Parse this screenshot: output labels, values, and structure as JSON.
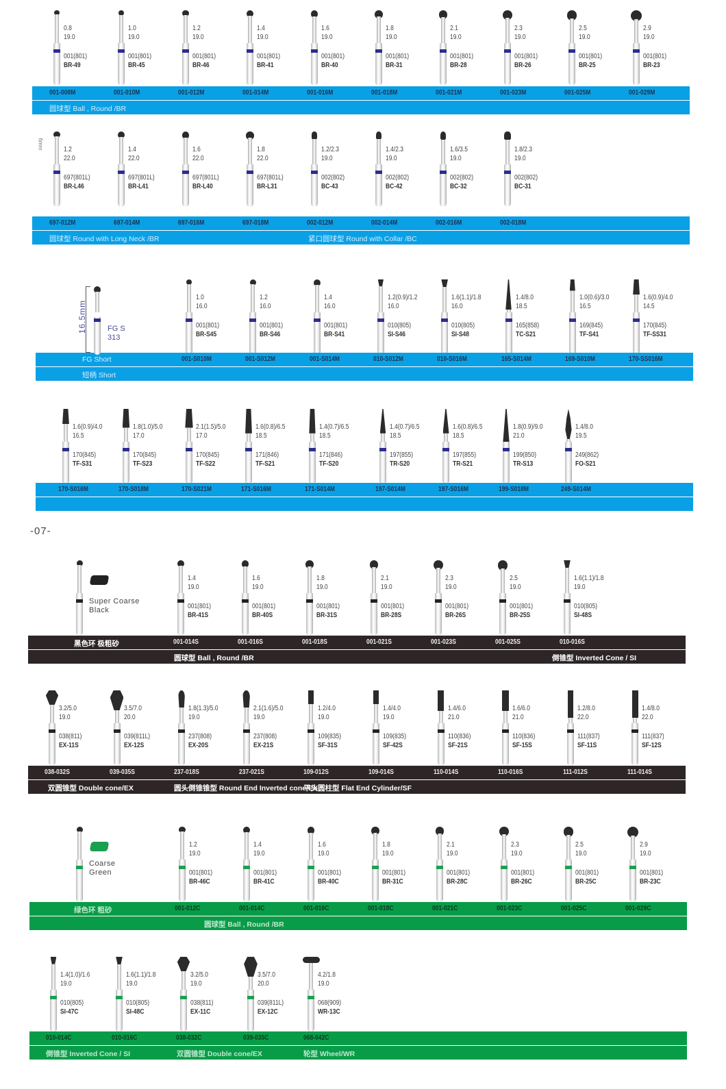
{
  "page_number": "-07-",
  "colors": {
    "blue_band": "#0aa0e6",
    "black_band": "#2e2626",
    "green_band": "#089c48",
    "ring_blue": "#2c2c90",
    "ring_black": "#222222",
    "ring_green": "#1aa050"
  },
  "sections": [
    {
      "band": "blue",
      "ring": "blue",
      "codes_label": "",
      "sub_labels": [
        {
          "text": "圆球型 Ball , Round /BR"
        }
      ],
      "items": [
        {
          "shape": "ball",
          "d": 0.8,
          "size": "0.8",
          "len": "19.0",
          "iso": "001(801)",
          "code": "BR-49",
          "order": "001-008M"
        },
        {
          "shape": "ball",
          "d": 1.0,
          "size": "1.0",
          "len": "19.0",
          "iso": "001(801)",
          "code": "BR-45",
          "order": "001-010M"
        },
        {
          "shape": "ball",
          "d": 1.2,
          "size": "1.2",
          "len": "19.0",
          "iso": "001(801)",
          "code": "BR-46",
          "order": "001-012M"
        },
        {
          "shape": "ball",
          "d": 1.4,
          "size": "1.4",
          "len": "19.0",
          "iso": "001(801)",
          "code": "BR-41",
          "order": "001-014M"
        },
        {
          "shape": "ball",
          "d": 1.6,
          "size": "1.6",
          "len": "19.0",
          "iso": "001(801)",
          "code": "BR-40",
          "order": "001-016M"
        },
        {
          "shape": "ball",
          "d": 1.8,
          "size": "1.8",
          "len": "19.0",
          "iso": "001(801)",
          "code": "BR-31",
          "order": "001-018M"
        },
        {
          "shape": "ball",
          "d": 2.1,
          "size": "2.1",
          "len": "19.0",
          "iso": "001(801)",
          "code": "BR-28",
          "order": "001-021M"
        },
        {
          "shape": "ball",
          "d": 2.3,
          "size": "2.3",
          "len": "19.0",
          "iso": "001(801)",
          "code": "BR-26",
          "order": "001-023M"
        },
        {
          "shape": "ball",
          "d": 2.5,
          "size": "2.5",
          "len": "19.0",
          "iso": "001(801)",
          "code": "BR-25",
          "order": "001-025M"
        },
        {
          "shape": "ball",
          "d": 2.9,
          "size": "2.9",
          "len": "19.0",
          "iso": "001(801)",
          "code": "BR-23",
          "order": "001-029M"
        }
      ]
    },
    {
      "band": "blue",
      "ring": "blue",
      "codes_label": "",
      "intro_mark": "6mm",
      "sub_labels": [
        {
          "text": "圆球型 Round with Long Neck /BR"
        },
        {
          "text": "紧口圆球型 Round with Collar /BC"
        }
      ],
      "items": [
        {
          "shape": "ball",
          "d": 1.2,
          "size": "1.2",
          "len": "22.0",
          "iso": "697(801L)",
          "code": "BR-L46",
          "order": "697-012M"
        },
        {
          "shape": "ball",
          "d": 1.4,
          "size": "1.4",
          "len": "22.0",
          "iso": "697(801L)",
          "code": "BR-L41",
          "order": "697-014M"
        },
        {
          "shape": "ball",
          "d": 1.6,
          "size": "1.6",
          "len": "22.0",
          "iso": "697(801L)",
          "code": "BR-L40",
          "order": "697-016M"
        },
        {
          "shape": "ball",
          "d": 1.8,
          "size": "1.8",
          "len": "22.0",
          "iso": "697(801L)",
          "code": "BR-L31",
          "order": "697-018M"
        },
        {
          "shape": "collar",
          "d": 1.2,
          "size": "1.2/2.3",
          "len": "19.0",
          "iso": "002(802)",
          "code": "BC-43",
          "order": "002-012M"
        },
        {
          "shape": "collar",
          "d": 1.4,
          "size": "1.4/2.3",
          "len": "19.0",
          "iso": "002(802)",
          "code": "BC-42",
          "order": "002-014M"
        },
        {
          "shape": "collar",
          "d": 1.6,
          "size": "1.6/3.5",
          "len": "19.0",
          "iso": "002(802)",
          "code": "BC-32",
          "order": "002-016M"
        },
        {
          "shape": "collar",
          "d": 1.8,
          "size": "1.8/2.3",
          "len": "19.0",
          "iso": "002(802)",
          "code": "BC-31",
          "order": "002-018M"
        }
      ]
    },
    {
      "band": "blue",
      "ring": "blue",
      "codes_label": "FG Short",
      "intro": {
        "length": "16.5mm",
        "line1": "FG S",
        "line2": "313"
      },
      "sub_labels": [
        {
          "text": "短柄 Short"
        }
      ],
      "items": [
        {
          "shape": "ball",
          "d": 1.0,
          "size": "1.0",
          "len": "16.0",
          "iso": "001(801)",
          "code": "BR-S45",
          "order": "001-S010M"
        },
        {
          "shape": "ball",
          "d": 1.2,
          "size": "1.2",
          "len": "16.0",
          "iso": "001(801)",
          "code": "BR-S46",
          "order": "001-S012M"
        },
        {
          "shape": "ball",
          "d": 1.4,
          "size": "1.4",
          "len": "16.0",
          "iso": "001(801)",
          "code": "BR-S41",
          "order": "001-S014M"
        },
        {
          "shape": "icone",
          "d": 1.2,
          "size": "1.2(0.9)/1.2",
          "len": "16.0",
          "iso": "010(805)",
          "code": "SI-S46",
          "order": "010-S012M"
        },
        {
          "shape": "icone",
          "d": 1.6,
          "size": "1.6(1.1)/1.8",
          "len": "16.0",
          "iso": "010(805)",
          "code": "SI-S48",
          "order": "010-S016M"
        },
        {
          "shape": "taper",
          "d": 1.4,
          "h": 8.0,
          "size": "1.4/8.0",
          "len": "18.5",
          "iso": "165(858)",
          "code": "TC-S21",
          "order": "165-S014M"
        },
        {
          "shape": "flat",
          "d": 1.0,
          "h": 3.0,
          "size": "1.0(0.6)/3.0",
          "len": "16.5",
          "iso": "169(845)",
          "code": "TF-S41",
          "order": "169-S010M"
        },
        {
          "shape": "flat",
          "d": 1.6,
          "h": 4.0,
          "size": "1.6(0.9)/4.0",
          "len": "14.5",
          "iso": "170(845)",
          "code": "TF-SS31",
          "order": "170-SS016M"
        }
      ]
    },
    {
      "band": "blue",
      "ring": "blue",
      "codes_label": "",
      "sub_labels": [],
      "items": [
        {
          "shape": "flat",
          "d": 1.6,
          "h": 4.0,
          "size": "1.6(0.9)/4.0",
          "len": "16.5",
          "iso": "170(845)",
          "code": "TF-S31",
          "order": "170-S016M"
        },
        {
          "shape": "flat",
          "d": 1.8,
          "h": 5.0,
          "size": "1.8(1.0)/5.0",
          "len": "17.0",
          "iso": "170(845)",
          "code": "TF-S23",
          "order": "170-S018M"
        },
        {
          "shape": "flat",
          "d": 2.1,
          "h": 5.0,
          "size": "2.1(1.5)/5.0",
          "len": "17.0",
          "iso": "170(845)",
          "code": "TF-S22",
          "order": "170-S021M"
        },
        {
          "shape": "flat",
          "d": 1.6,
          "h": 6.5,
          "size": "1.6(0.8)/6.5",
          "len": "18.5",
          "iso": "171(846)",
          "code": "TF-S21",
          "order": "171-S016M"
        },
        {
          "shape": "flat",
          "d": 1.4,
          "h": 6.5,
          "size": "1.4(0.7)/6.5",
          "len": "18.5",
          "iso": "171(846)",
          "code": "TF-S20",
          "order": "171-S014M"
        },
        {
          "shape": "taper",
          "d": 1.4,
          "h": 6.5,
          "size": "1.4(0.7)/6.5",
          "len": "18.5",
          "iso": "197(855)",
          "code": "TR-S20",
          "order": "197-S014M"
        },
        {
          "shape": "taper",
          "d": 1.6,
          "h": 6.5,
          "size": "1.6(0.8)/6.5",
          "len": "18.5",
          "iso": "197(855)",
          "code": "TR-S21",
          "order": "197-S016M"
        },
        {
          "shape": "taper",
          "d": 1.8,
          "h": 9.0,
          "size": "1.8(0.9)/9.0",
          "len": "21.0",
          "iso": "199(850)",
          "code": "TR-S13",
          "order": "199-S018M"
        },
        {
          "shape": "flame",
          "d": 1.4,
          "h": 8.0,
          "size": "1.4/8.0",
          "len": "19.5",
          "iso": "249(862)",
          "code": "FO-S21",
          "order": "249-S014M"
        }
      ]
    },
    {
      "band": "black",
      "ring": "black",
      "codes_label": "黑色环 极粗砂",
      "intro": {
        "line1": "Super Coarse",
        "line2": "Black"
      },
      "sub_labels": [
        {
          "text": "圆球型 Ball , Round /BR"
        },
        {
          "text": "倒锥型 Inverted Cone / SI"
        }
      ],
      "items": [
        {
          "shape": "ball",
          "d": 1.4,
          "size": "1.4",
          "len": "19.0",
          "iso": "001(801)",
          "code": "BR-41S",
          "order": "001-014S"
        },
        {
          "shape": "ball",
          "d": 1.6,
          "size": "1.6",
          "len": "19.0",
          "iso": "001(801)",
          "code": "BR-40S",
          "order": "001-016S"
        },
        {
          "shape": "ball",
          "d": 1.8,
          "size": "1.8",
          "len": "19.0",
          "iso": "001(801)",
          "code": "BR-31S",
          "order": "001-018S"
        },
        {
          "shape": "ball",
          "d": 2.1,
          "size": "2.1",
          "len": "19.0",
          "iso": "001(801)",
          "code": "BR-28S",
          "order": "001-021S"
        },
        {
          "shape": "ball",
          "d": 2.3,
          "size": "2.3",
          "len": "19.0",
          "iso": "001(801)",
          "code": "BR-26S",
          "order": "001-023S"
        },
        {
          "shape": "ball",
          "d": 2.5,
          "size": "2.5",
          "len": "19.0",
          "iso": "001(801)",
          "code": "BR-25S",
          "order": "001-025S"
        },
        {
          "shape": "icone",
          "d": 1.6,
          "size": "1.6(1.1)/1.8",
          "len": "19.0",
          "iso": "010(805)",
          "code": "SI-48S",
          "order": "010-016S"
        }
      ]
    },
    {
      "band": "black",
      "ring": "black",
      "codes_label": "",
      "sub_labels": [
        {
          "text": "双圆锥型 Double cone/EX"
        },
        {
          "text": "圆头倒锥锥型 Round End Inverted cone/EX"
        },
        {
          "text": "平头圆柱型 Flat End Cylinder/SF"
        }
      ],
      "items": [
        {
          "shape": "dcone",
          "d": 3.2,
          "h": 5.0,
          "size": "3.2/5.0",
          "len": "19.0",
          "iso": "038(811)",
          "code": "EX-11S",
          "order": "038-032S"
        },
        {
          "shape": "dcone",
          "d": 3.5,
          "h": 7.0,
          "size": "3.5/7.0",
          "len": "20.0",
          "iso": "039(811L)",
          "code": "EX-12S",
          "order": "039-035S"
        },
        {
          "shape": "rcone",
          "d": 1.8,
          "h": 5.0,
          "size": "1.8(1.3)/5.0",
          "len": "19.0",
          "iso": "237(808)",
          "code": "EX-20S",
          "order": "237-018S"
        },
        {
          "shape": "rcone",
          "d": 2.1,
          "h": 5.0,
          "size": "2.1(1.6)/5.0",
          "len": "19.0",
          "iso": "237(808)",
          "code": "EX-21S",
          "order": "237-021S"
        },
        {
          "shape": "cyl",
          "d": 1.2,
          "h": 4.0,
          "size": "1.2/4.0",
          "len": "19.0",
          "iso": "109(835)",
          "code": "SF-31S",
          "order": "109-012S"
        },
        {
          "shape": "cyl",
          "d": 1.4,
          "h": 4.0,
          "size": "1.4/4.0",
          "len": "19.0",
          "iso": "109(835)",
          "code": "SF-42S",
          "order": "109-014S"
        },
        {
          "shape": "cyl",
          "d": 1.4,
          "h": 6.0,
          "size": "1.4/6.0",
          "len": "21.0",
          "iso": "110(836)",
          "code": "SF-21S",
          "order": "110-014S"
        },
        {
          "shape": "cyl",
          "d": 1.6,
          "h": 6.0,
          "size": "1.6/6.0",
          "len": "21.0",
          "iso": "110(836)",
          "code": "SF-15S",
          "order": "110-016S"
        },
        {
          "shape": "cyl",
          "d": 1.2,
          "h": 8.0,
          "size": "1.2/8.0",
          "len": "22.0",
          "iso": "111(837)",
          "code": "SF-11S",
          "order": "111-012S"
        },
        {
          "shape": "cyl",
          "d": 1.4,
          "h": 8.0,
          "size": "1.4/8.0",
          "len": "22.0",
          "iso": "111(837)",
          "code": "SF-12S",
          "order": "111-014S"
        }
      ]
    },
    {
      "band": "green",
      "ring": "green",
      "codes_label": "绿色环 粗砂",
      "intro": {
        "line1": "Coarse",
        "line2": "Green"
      },
      "sub_labels": [
        {
          "text": "圆球型 Ball , Round /BR"
        }
      ],
      "items": [
        {
          "shape": "ball",
          "d": 1.2,
          "size": "1.2",
          "len": "19.0",
          "iso": "001(801)",
          "code": "BR-46C",
          "order": "001-012C"
        },
        {
          "shape": "ball",
          "d": 1.4,
          "size": "1.4",
          "len": "19.0",
          "iso": "001(801)",
          "code": "BR-41C",
          "order": "001-014C"
        },
        {
          "shape": "ball",
          "d": 1.6,
          "size": "1.6",
          "len": "19.0",
          "iso": "001(801)",
          "code": "BR-40C",
          "order": "001-016C"
        },
        {
          "shape": "ball",
          "d": 1.8,
          "size": "1.8",
          "len": "19.0",
          "iso": "001(801)",
          "code": "BR-31C",
          "order": "001-018C"
        },
        {
          "shape": "ball",
          "d": 2.1,
          "size": "2.1",
          "len": "19.0",
          "iso": "001(801)",
          "code": "BR-28C",
          "order": "001-021C"
        },
        {
          "shape": "ball",
          "d": 2.3,
          "size": "2.3",
          "len": "19.0",
          "iso": "001(801)",
          "code": "BR-26C",
          "order": "001-023C"
        },
        {
          "shape": "ball",
          "d": 2.5,
          "size": "2.5",
          "len": "19.0",
          "iso": "001(801)",
          "code": "BR-25C",
          "order": "001-025C"
        },
        {
          "shape": "ball",
          "d": 2.9,
          "size": "2.9",
          "len": "19.0",
          "iso": "001(801)",
          "code": "BR-23C",
          "order": "001-029C"
        }
      ]
    },
    {
      "band": "green",
      "ring": "green",
      "codes_label": "",
      "sub_labels": [
        {
          "text": "倒锥型 Inverted Cone / SI"
        },
        {
          "text": "双圆锥型 Double cone/EX"
        },
        {
          "text": "轮型 Wheel/WR"
        }
      ],
      "items": [
        {
          "shape": "icone",
          "d": 1.4,
          "size": "1.4(1.0)/1.6",
          "len": "19.0",
          "iso": "010(805)",
          "code": "SI-47C",
          "order": "010-014C"
        },
        {
          "shape": "icone",
          "d": 1.6,
          "size": "1.6(1.1)/1.8",
          "len": "19.0",
          "iso": "010(805)",
          "code": "SI-48C",
          "order": "010-016C"
        },
        {
          "shape": "dcone",
          "d": 3.2,
          "h": 5.0,
          "size": "3.2/5.0",
          "len": "19.0",
          "iso": "038(811)",
          "code": "EX-11C",
          "order": "038-032C"
        },
        {
          "shape": "dcone",
          "d": 3.5,
          "h": 7.0,
          "size": "3.5/7.0",
          "len": "20.0",
          "iso": "039(811L)",
          "code": "EX-12C",
          "order": "039-035C"
        },
        {
          "shape": "wheel",
          "d": 4.2,
          "h": 1.8,
          "size": "4.2/1.8",
          "len": "19.0",
          "iso": "068(909)",
          "code": "WR-13C",
          "order": "068-042C"
        }
      ]
    }
  ]
}
